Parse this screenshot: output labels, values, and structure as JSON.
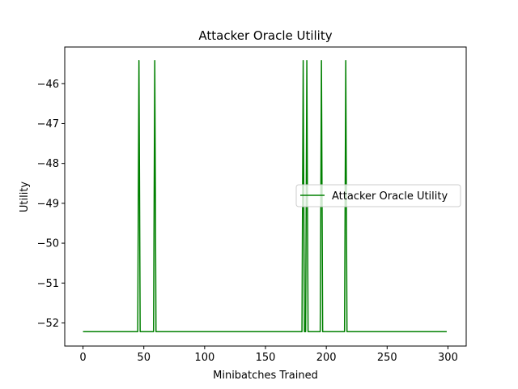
{
  "chart_data": {
    "type": "line",
    "title": "Attacker Oracle Utility",
    "xlabel": "Minibatches Trained",
    "ylabel": "Utility",
    "xlim": [
      -15,
      315
    ],
    "ylim": [
      -52.58,
      -45.08
    ],
    "xticks": [
      0,
      50,
      100,
      150,
      200,
      250,
      300
    ],
    "yticks": [
      -46,
      -47,
      -48,
      -49,
      -50,
      -51,
      -52
    ],
    "ytick_labels": [
      "−46",
      "−47",
      "−48",
      "−49",
      "−50",
      "−51",
      "−52"
    ],
    "grid": false,
    "legend_position": "center-right",
    "color": "#008000",
    "series": [
      {
        "name": "Attacker Oracle Utility",
        "baseline": -52.22,
        "n_points": 300,
        "spikes": [
          {
            "x": 46,
            "y": -45.42
          },
          {
            "x": 59,
            "y": -45.42
          },
          {
            "x": 181,
            "y": -45.42
          },
          {
            "x": 184,
            "y": -45.42
          },
          {
            "x": 196,
            "y": -45.42
          },
          {
            "x": 216,
            "y": -45.42
          }
        ]
      }
    ]
  }
}
